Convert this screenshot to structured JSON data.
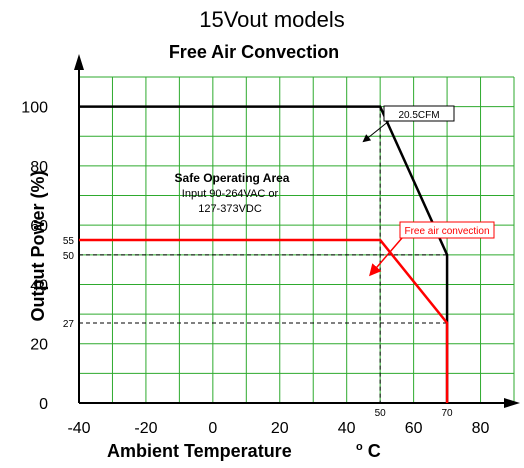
{
  "chart_data": {
    "type": "line",
    "title": "15Vout models",
    "subtitle": "Free Air Convection",
    "xlabel": "Ambient Temperature",
    "xunit": "°C",
    "ylabel": "Output Power (%)",
    "xlim": [
      -40,
      90
    ],
    "ylim": [
      0,
      110
    ],
    "grid": true,
    "x_ticks": [
      "-40",
      "-20",
      "0",
      "20",
      "40",
      "60",
      "80"
    ],
    "y_ticks": [
      "0",
      "20",
      "40",
      "60",
      "80",
      "100"
    ],
    "minor_x_labels": [
      "50",
      "70"
    ],
    "minor_y_labels": [
      "27",
      "50",
      "55"
    ],
    "series": [
      {
        "name": "20.5CFM",
        "color": "#000000",
        "points": [
          [
            -40,
            100
          ],
          [
            50,
            100
          ],
          [
            70,
            50
          ],
          [
            70,
            0
          ]
        ]
      },
      {
        "name": "Free air convection",
        "color": "#ff0000",
        "points": [
          [
            -40,
            55
          ],
          [
            50,
            55
          ],
          [
            70,
            27
          ],
          [
            70,
            0
          ]
        ]
      }
    ],
    "annotations": {
      "area_title": "Safe Operating Area",
      "area_line1": "Input 90-264VAC or",
      "area_line2": "127-373VDC",
      "callout_black": "20.5CFM",
      "callout_red": "Free air convection"
    }
  }
}
